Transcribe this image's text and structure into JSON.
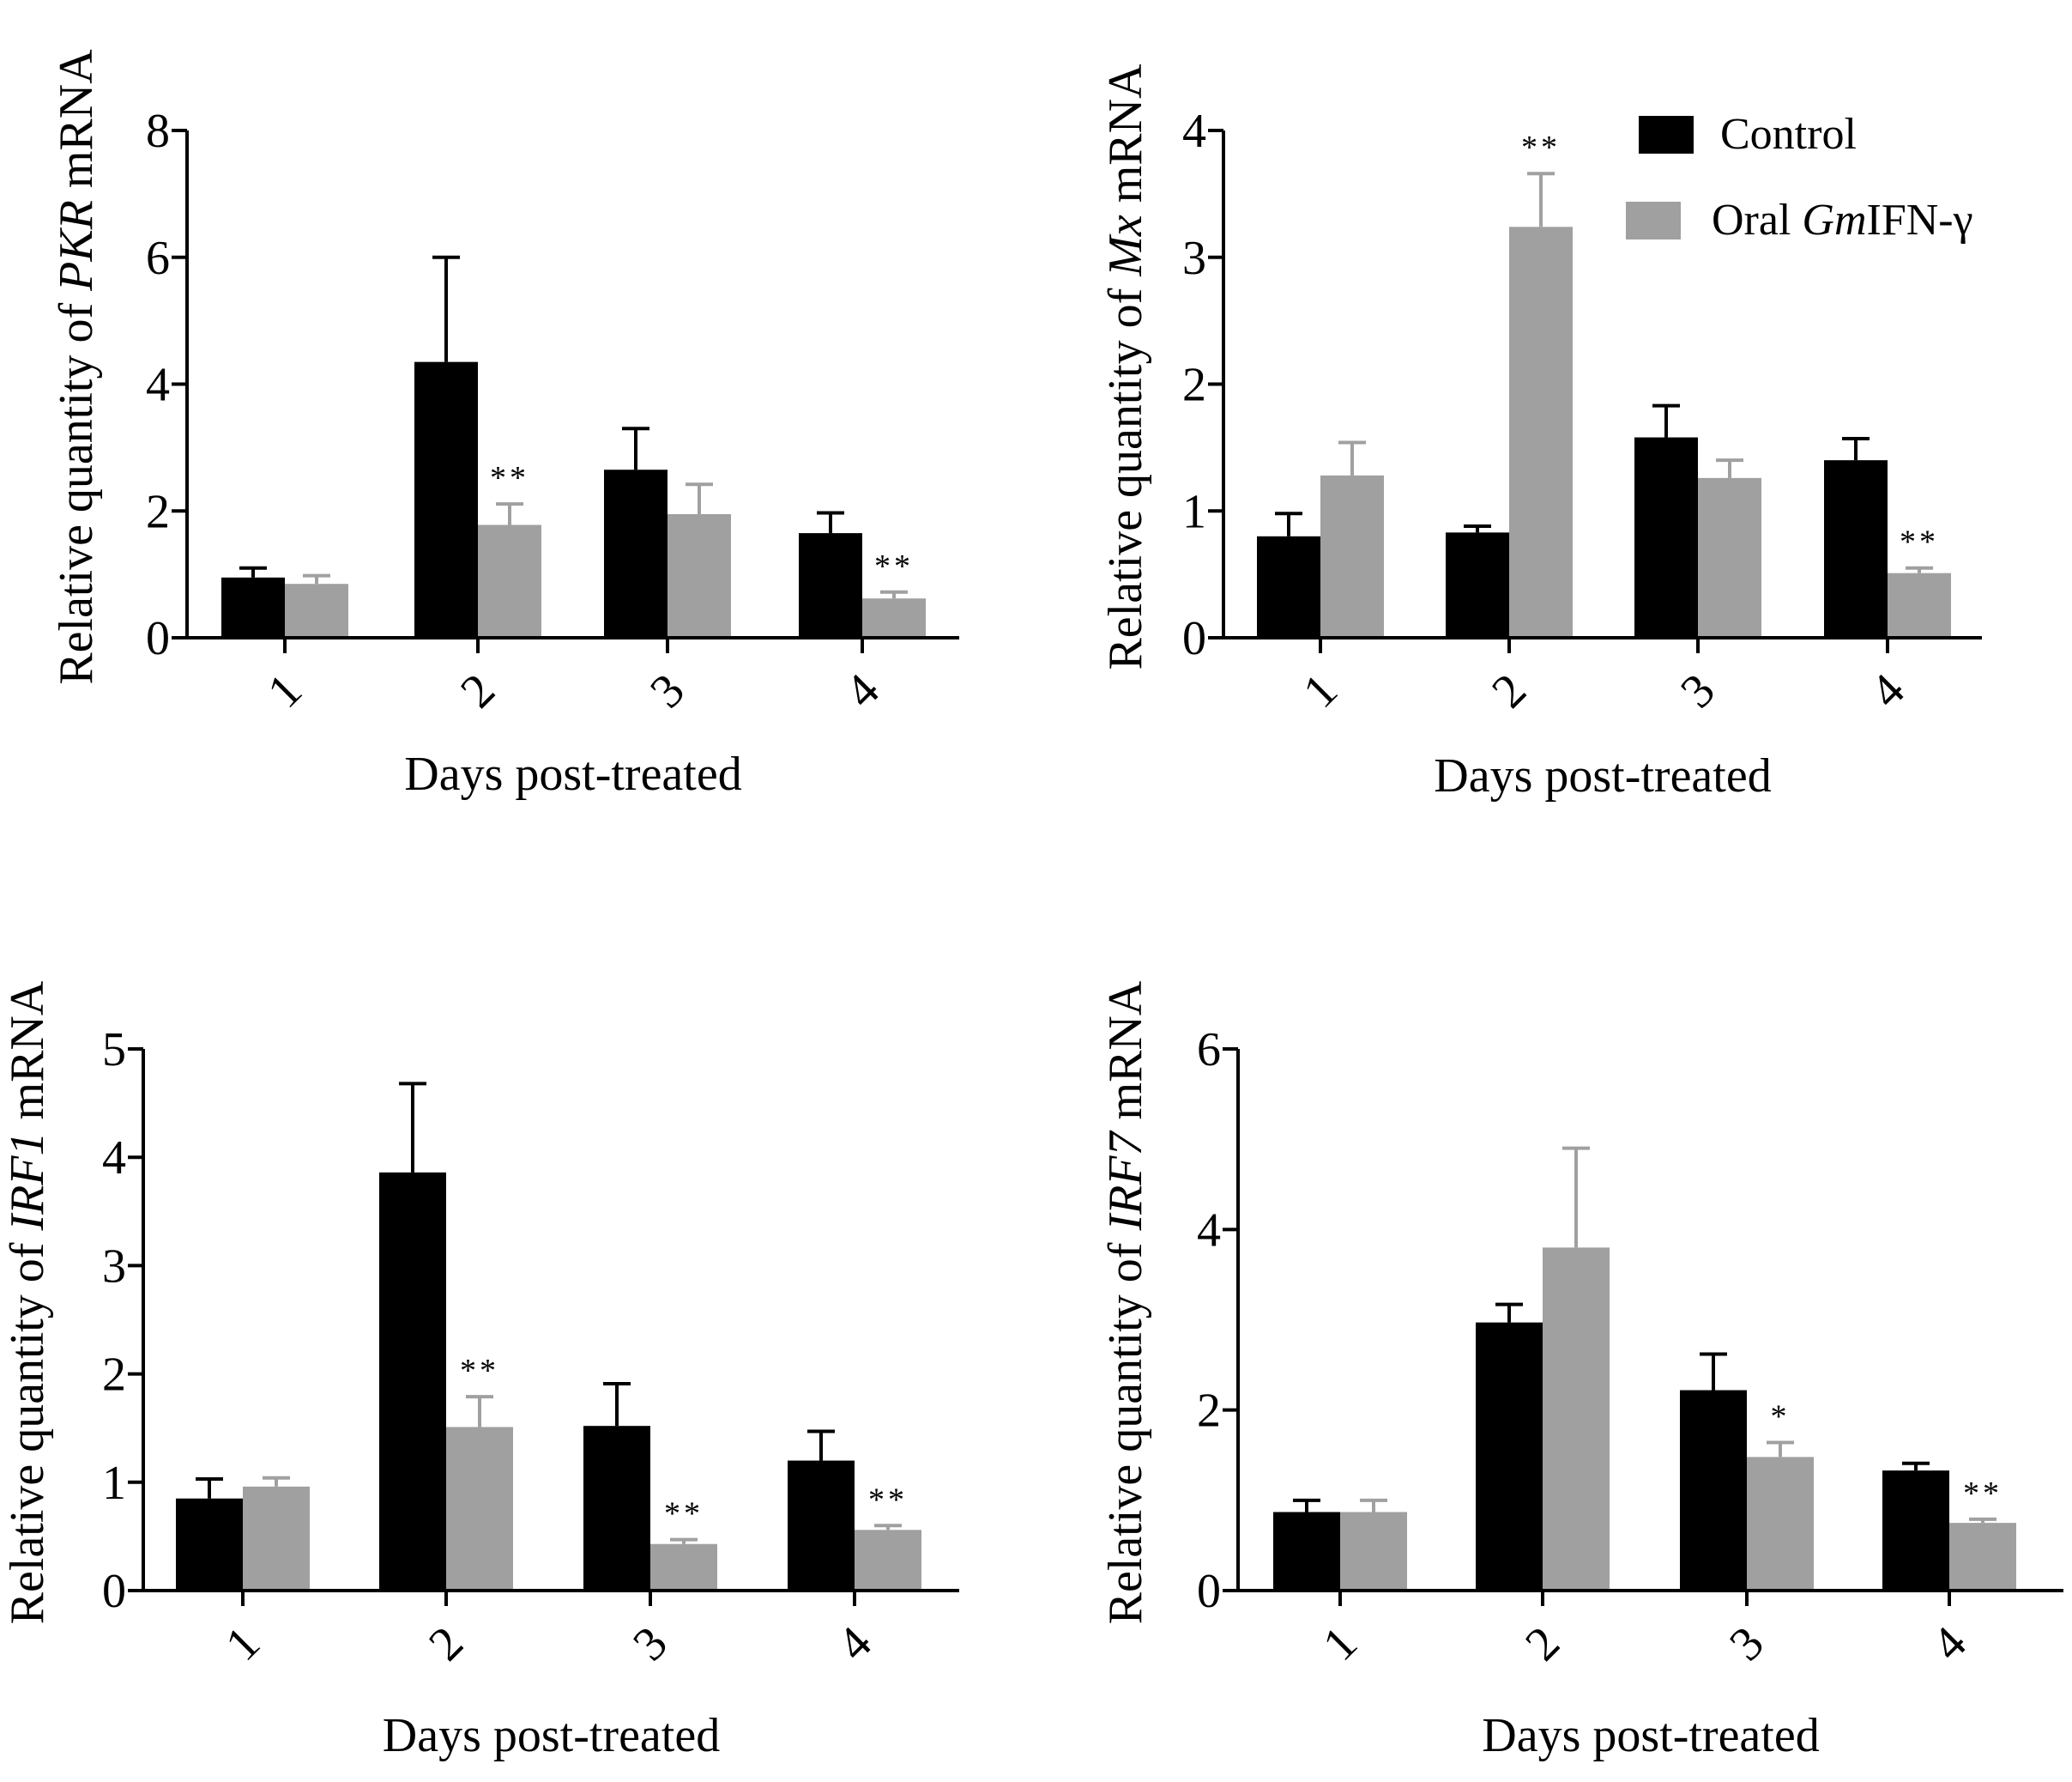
{
  "legend": {
    "items": [
      {
        "label": "Control",
        "color": "#000000"
      },
      {
        "label_parts": [
          {
            "text": "Oral ",
            "italic": false
          },
          {
            "text": "Gm",
            "italic": true
          },
          {
            "text": "IFN-γ",
            "italic": false
          }
        ],
        "label": "Oral GmIFN-γ",
        "color": "#a0a0a0"
      }
    ]
  },
  "colors": {
    "control": "#000000",
    "treated": "#a0a0a0",
    "axis": "#000000"
  },
  "chart_data": [
    {
      "type": "bar",
      "title": "",
      "xlabel": "Days post-treated",
      "ylabel_parts": [
        {
          "text": "Relative quantity of ",
          "italic": false
        },
        {
          "text": "PKR",
          "italic": true
        },
        {
          "text": " mRNA",
          "italic": false
        }
      ],
      "ylabel": "Relative quantity of PKR mRNA",
      "categories": [
        "1",
        "2",
        "3",
        "4"
      ],
      "ylim": [
        0,
        8
      ],
      "yticks": [
        0,
        2,
        4,
        6,
        8
      ],
      "series": [
        {
          "name": "Control",
          "values": [
            0.95,
            4.35,
            2.65,
            1.65
          ],
          "errors": [
            0.15,
            1.65,
            0.65,
            0.32
          ]
        },
        {
          "name": "Oral GmIFN-γ",
          "values": [
            0.85,
            1.78,
            1.95,
            0.62
          ],
          "errors": [
            0.13,
            0.33,
            0.47,
            0.1
          ]
        }
      ],
      "significance": [
        {
          "category": "2",
          "series": 1,
          "mark": "**"
        },
        {
          "category": "4",
          "series": 1,
          "mark": "**"
        }
      ]
    },
    {
      "type": "bar",
      "title": "",
      "xlabel": "Days post-treated",
      "ylabel_parts": [
        {
          "text": "Relative quantity of ",
          "italic": false
        },
        {
          "text": "Mx",
          "italic": true
        },
        {
          "text": " mRNA",
          "italic": false
        }
      ],
      "ylabel": "Relative quantity of Mx mRNA",
      "categories": [
        "1",
        "2",
        "3",
        "4"
      ],
      "ylim": [
        0,
        4
      ],
      "yticks": [
        0,
        1,
        2,
        3,
        4
      ],
      "series": [
        {
          "name": "Control",
          "values": [
            0.8,
            0.83,
            1.58,
            1.4
          ],
          "errors": [
            0.18,
            0.05,
            0.25,
            0.17
          ]
        },
        {
          "name": "Oral GmIFN-γ",
          "values": [
            1.28,
            3.24,
            1.26,
            0.51
          ],
          "errors": [
            0.26,
            0.42,
            0.14,
            0.04
          ]
        }
      ],
      "significance": [
        {
          "category": "2",
          "series": 1,
          "mark": "**"
        },
        {
          "category": "4",
          "series": 1,
          "mark": "**"
        }
      ]
    },
    {
      "type": "bar",
      "title": "",
      "xlabel": "Days post-treated",
      "ylabel_parts": [
        {
          "text": "Relative quantity of ",
          "italic": false
        },
        {
          "text": "IRF1",
          "italic": true
        },
        {
          "text": " mRNA",
          "italic": false
        }
      ],
      "ylabel": "Relative quantity of IRF1 mRNA",
      "categories": [
        "1",
        "2",
        "3",
        "4"
      ],
      "ylim": [
        0,
        5
      ],
      "yticks": [
        0,
        1,
        2,
        3,
        4,
        5
      ],
      "series": [
        {
          "name": "Control",
          "values": [
            0.85,
            3.86,
            1.52,
            1.2
          ],
          "errors": [
            0.18,
            0.82,
            0.39,
            0.27
          ]
        },
        {
          "name": "Oral GmIFN-γ",
          "values": [
            0.96,
            1.51,
            0.43,
            0.56
          ],
          "errors": [
            0.08,
            0.28,
            0.04,
            0.04
          ]
        }
      ],
      "significance": [
        {
          "category": "2",
          "series": 1,
          "mark": "**"
        },
        {
          "category": "3",
          "series": 1,
          "mark": "**"
        },
        {
          "category": "4",
          "series": 1,
          "mark": "**"
        }
      ]
    },
    {
      "type": "bar",
      "title": "",
      "xlabel": "Days post-treated",
      "ylabel_parts": [
        {
          "text": "Relative quantity of ",
          "italic": false
        },
        {
          "text": "IRF7",
          "italic": true
        },
        {
          "text": " mRNA",
          "italic": false
        }
      ],
      "ylabel": "Relative quantity of IRF7 mRNA",
      "categories": [
        "1",
        "2",
        "3",
        "4"
      ],
      "ylim": [
        0,
        6
      ],
      "yticks": [
        0,
        2,
        4,
        6
      ],
      "series": [
        {
          "name": "Control",
          "values": [
            0.87,
            2.97,
            2.22,
            1.33
          ],
          "errors": [
            0.13,
            0.2,
            0.4,
            0.08
          ]
        },
        {
          "name": "Oral GmIFN-γ",
          "values": [
            0.87,
            3.8,
            1.48,
            0.75
          ],
          "errors": [
            0.13,
            1.1,
            0.16,
            0.04
          ]
        }
      ],
      "significance": [
        {
          "category": "3",
          "series": 1,
          "mark": "*"
        },
        {
          "category": "4",
          "series": 1,
          "mark": "**"
        }
      ]
    }
  ]
}
